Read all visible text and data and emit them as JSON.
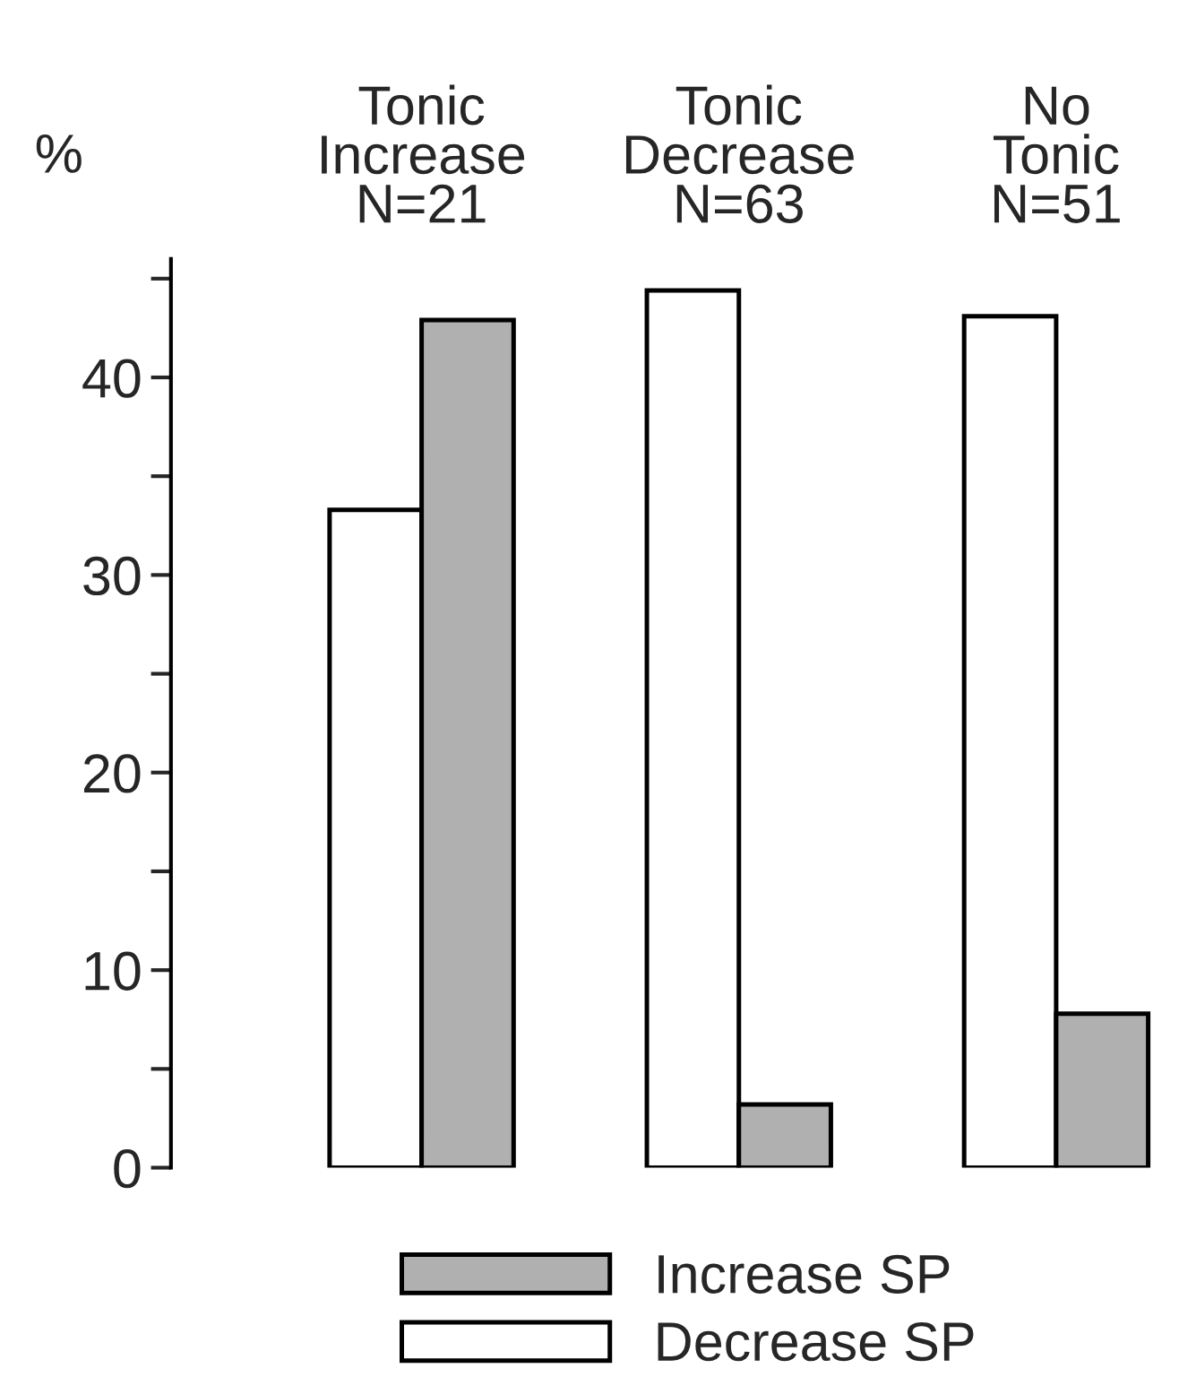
{
  "chart_data": {
    "type": "bar",
    "categories": [
      "Tonic\nIncrease\nN=21",
      "Tonic\nDecrease\nN=63",
      "No\nTonic\nN=51"
    ],
    "series": [
      {
        "name": "Decrease SP",
        "color": "#ffffff",
        "values": [
          33.3,
          44.4,
          43.1
        ]
      },
      {
        "name": "Increase SP",
        "color": "#b0b0b0",
        "values": [
          42.9,
          3.2,
          7.8
        ]
      }
    ],
    "ylabel": "%",
    "ylim": [
      0,
      46
    ],
    "yticks": [
      0,
      10,
      20,
      30,
      40
    ],
    "grid": false,
    "legend": "bottom"
  }
}
